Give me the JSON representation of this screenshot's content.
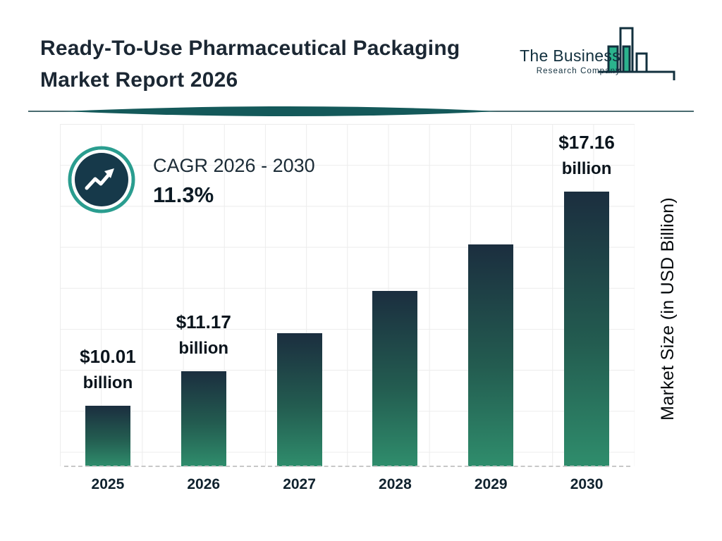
{
  "header": {
    "title_line1": "Ready-To-Use Pharmaceutical Packaging",
    "title_line2": "Market Report 2026",
    "logo": {
      "name": "The Business",
      "subname": "Research Company"
    }
  },
  "cagr": {
    "label": "CAGR 2026 - 2030",
    "value": "11.3%"
  },
  "chart_data": {
    "type": "bar",
    "categories": [
      "2025",
      "2026",
      "2027",
      "2028",
      "2029",
      "2030"
    ],
    "values": [
      10.01,
      11.17,
      12.43,
      13.84,
      15.41,
      17.16
    ],
    "labeled_bars": [
      {
        "index": 0,
        "amount": "$10.01",
        "unit": "billion"
      },
      {
        "index": 1,
        "amount": "$11.17",
        "unit": "billion"
      },
      {
        "index": 5,
        "amount": "$17.16",
        "unit": "billion"
      }
    ],
    "xlabel": "",
    "ylabel": "Market Size (in USD Billion)",
    "grid": true,
    "legend": "none",
    "colors": {
      "bar_top": "#1b2e3f",
      "bar_bottom": "#2f8d6c",
      "accent_teal": "#2a9d8f",
      "badge_fill": "#16394a",
      "text_dark": "#132531"
    }
  }
}
